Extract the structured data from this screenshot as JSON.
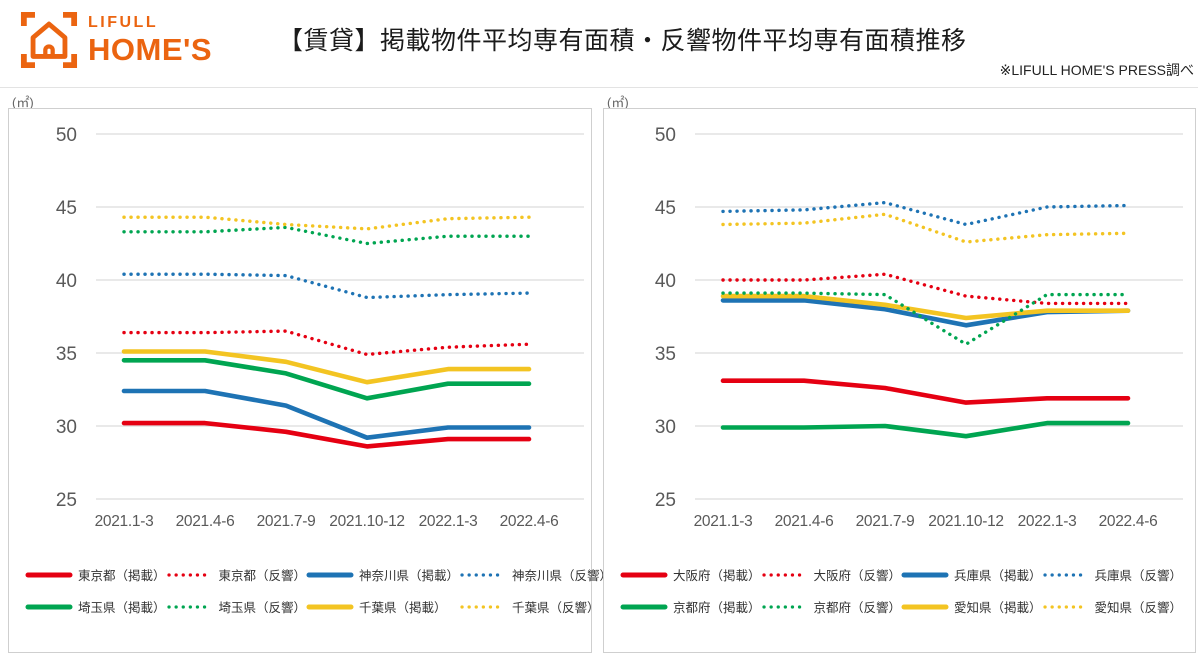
{
  "header": {
    "logo": {
      "line1": "LIFULL",
      "line2": "HOME'S",
      "icon": "house-in-viewfinder-brackets",
      "color": "#EB6410"
    },
    "title": "【賃貸】掲載物件平均専有面積・反響物件平均専有面積推移",
    "note": "※LIFULL HOME'S PRESS調べ"
  },
  "colors": {
    "red": "#E50012",
    "blue": "#1E73B4",
    "green": "#00A551",
    "yellow": "#F3C422",
    "grid": "#dcdcdc",
    "axis": "#595959",
    "brand_orange": "#EB6410"
  },
  "chart_data": [
    {
      "type": "line",
      "unit_label": "(㎡)",
      "x": [
        "2021.1-3",
        "2021.4-6",
        "2021.7-9",
        "2021.10-12",
        "2022.1-3",
        "2022.4-6"
      ],
      "ylim": [
        25,
        50
      ],
      "yticks": [
        50,
        45,
        40,
        35,
        30,
        25
      ],
      "grid": true,
      "legend_position": "bottom",
      "series": [
        {
          "name": "東京都（掲載）",
          "color": "#E50012",
          "style": "solid",
          "z": 1,
          "values": [
            30.2,
            30.2,
            29.6,
            28.6,
            29.1,
            29.1
          ]
        },
        {
          "name": "東京都（反響）",
          "color": "#E50012",
          "style": "dotted",
          "z": 5,
          "values": [
            36.4,
            36.4,
            36.5,
            34.9,
            35.4,
            35.6
          ]
        },
        {
          "name": "神奈川県（掲載）",
          "color": "#1E73B4",
          "style": "solid",
          "z": 3,
          "values": [
            32.4,
            32.4,
            31.4,
            29.2,
            29.9,
            29.9
          ]
        },
        {
          "name": "神奈川県（反響）",
          "color": "#1E73B4",
          "style": "dotted",
          "z": 6,
          "values": [
            40.4,
            40.4,
            40.3,
            38.8,
            39.0,
            39.1
          ]
        },
        {
          "name": "埼玉県（掲載）",
          "color": "#00A551",
          "style": "solid",
          "z": 2,
          "values": [
            34.5,
            34.5,
            33.6,
            31.9,
            32.9,
            32.9
          ]
        },
        {
          "name": "埼玉県（反響）",
          "color": "#00A551",
          "style": "dotted",
          "z": 7,
          "values": [
            43.3,
            43.3,
            43.6,
            42.5,
            43.0,
            43.0
          ]
        },
        {
          "name": "千葉県（掲載）",
          "color": "#F3C422",
          "style": "solid",
          "z": 4,
          "values": [
            35.1,
            35.1,
            34.4,
            33.0,
            33.9,
            33.9
          ]
        },
        {
          "name": "千葉県（反響）",
          "color": "#F3C422",
          "style": "dotted",
          "z": 8,
          "values": [
            44.3,
            44.3,
            43.8,
            43.5,
            44.2,
            44.3
          ]
        }
      ]
    },
    {
      "type": "line",
      "unit_label": "(㎡)",
      "x": [
        "2021.1-3",
        "2021.4-6",
        "2021.7-9",
        "2021.10-12",
        "2022.1-3",
        "2022.4-6"
      ],
      "ylim": [
        25,
        50
      ],
      "yticks": [
        50,
        45,
        40,
        35,
        30,
        25
      ],
      "grid": true,
      "legend_position": "bottom",
      "series": [
        {
          "name": "大阪府（掲載）",
          "color": "#E50012",
          "style": "solid",
          "z": 1,
          "values": [
            33.1,
            33.1,
            32.6,
            31.6,
            31.9,
            31.9
          ]
        },
        {
          "name": "大阪府（反響）",
          "color": "#E50012",
          "style": "dotted",
          "z": 5,
          "values": [
            40.0,
            40.0,
            40.4,
            38.9,
            38.4,
            38.4
          ]
        },
        {
          "name": "兵庫県（掲載）",
          "color": "#1E73B4",
          "style": "solid",
          "z": 3,
          "values": [
            38.6,
            38.6,
            38.0,
            36.9,
            37.8,
            37.9
          ]
        },
        {
          "name": "兵庫県（反響）",
          "color": "#1E73B4",
          "style": "dotted",
          "z": 6,
          "values": [
            44.7,
            44.8,
            45.3,
            43.8,
            45.0,
            45.1
          ]
        },
        {
          "name": "京都府（掲載）",
          "color": "#00A551",
          "style": "solid",
          "z": 2,
          "values": [
            29.9,
            29.9,
            30.0,
            29.3,
            30.2,
            30.2
          ]
        },
        {
          "name": "京都府（反響）",
          "color": "#00A551",
          "style": "dotted",
          "z": 7,
          "values": [
            39.1,
            39.1,
            39.0,
            35.6,
            39.0,
            39.0
          ]
        },
        {
          "name": "愛知県（掲載）",
          "color": "#F3C422",
          "style": "solid",
          "z": 4,
          "values": [
            38.9,
            38.9,
            38.3,
            37.4,
            37.9,
            37.9
          ]
        },
        {
          "name": "愛知県（反響）",
          "color": "#F3C422",
          "style": "dotted",
          "z": 8,
          "values": [
            43.8,
            43.9,
            44.5,
            42.6,
            43.1,
            43.2
          ]
        }
      ]
    }
  ]
}
